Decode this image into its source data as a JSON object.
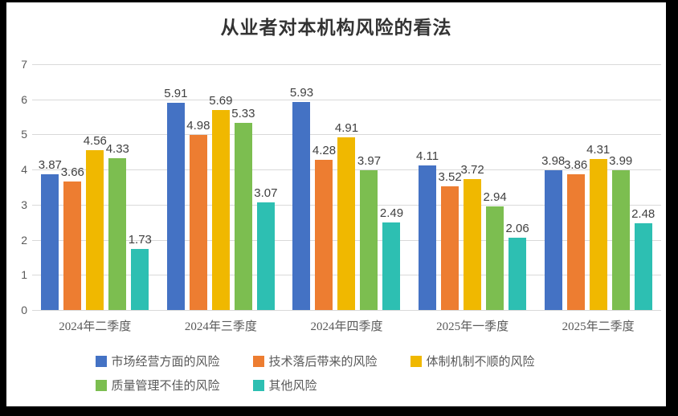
{
  "title": "从业者对本机构风险的看法",
  "chart_data": {
    "type": "bar",
    "title": "从业者对本机构风险的看法",
    "categories": [
      "2024年二季度",
      "2024年三季度",
      "2024年四季度",
      "2025年一季度",
      "2025年二季度"
    ],
    "series": [
      {
        "name": "市场经营方面的风险",
        "color": "#4472C4",
        "values": [
          3.87,
          5.91,
          5.93,
          4.11,
          3.98
        ]
      },
      {
        "name": "技术落后带来的风险",
        "color": "#ED7D31",
        "values": [
          3.66,
          4.98,
          4.28,
          3.52,
          3.86
        ]
      },
      {
        "name": "体制机制不顺的风险",
        "color": "#F0B800",
        "values": [
          4.56,
          5.69,
          4.91,
          3.72,
          4.31
        ]
      },
      {
        "name": "质量管理不佳的风险",
        "color": "#7CBE50",
        "values": [
          4.33,
          5.33,
          3.97,
          2.94,
          3.99
        ]
      },
      {
        "name": "其他风险",
        "color": "#2DBFB2",
        "values": [
          1.73,
          3.07,
          2.49,
          2.06,
          2.48
        ]
      }
    ],
    "ylim": [
      0,
      7
    ],
    "yticks": [
      0,
      1,
      2,
      3,
      4,
      5,
      6,
      7
    ],
    "grid": true,
    "legend_position": "bottom",
    "value_labels": true,
    "value_label_decimals": 2
  },
  "colors": {
    "grid": "#d9d9d9",
    "axis_text": "#595959",
    "value_text": "#404040",
    "title_text": "#333333",
    "background": "#ffffff",
    "frame": "#000000"
  }
}
